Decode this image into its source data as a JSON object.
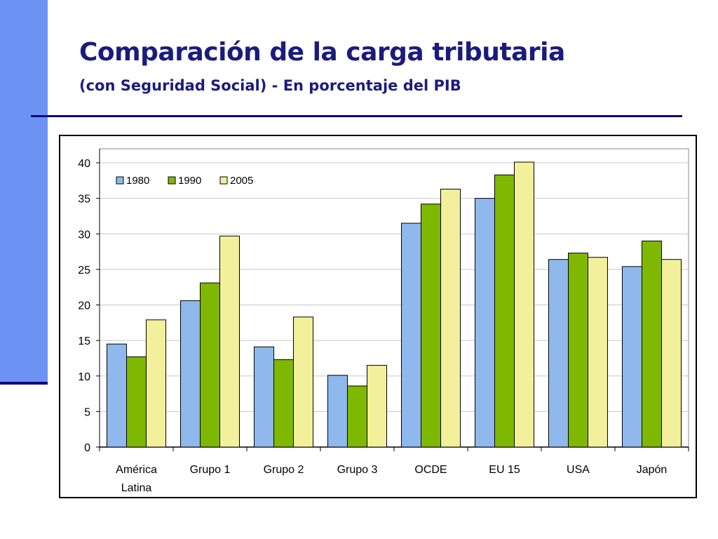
{
  "title": "Comparación de la carga tributaria",
  "subtitle": "(con Seguridad Social) - En porcentaje del PIB",
  "chart_data": {
    "type": "bar",
    "categories": [
      [
        "América",
        "Latina"
      ],
      [
        "Grupo 1"
      ],
      [
        "Grupo 2"
      ],
      [
        "Grupo 3"
      ],
      [
        "OCDE"
      ],
      [
        "EU 15"
      ],
      [
        "USA"
      ],
      [
        "Japón"
      ]
    ],
    "series": [
      {
        "name": "1980",
        "color": "#8FB9EC",
        "values": [
          14.5,
          20.6,
          14.1,
          10.1,
          31.5,
          35.0,
          26.4,
          25.4
        ]
      },
      {
        "name": "1990",
        "color": "#7FB800",
        "values": [
          12.7,
          23.1,
          12.3,
          8.6,
          34.2,
          38.3,
          27.3,
          29.0
        ]
      },
      {
        "name": "2005",
        "color": "#F2F09A",
        "values": [
          17.9,
          29.7,
          18.3,
          11.5,
          36.3,
          40.1,
          26.7,
          26.4
        ]
      }
    ],
    "ylim": [
      0,
      40
    ],
    "yticks": [
      0,
      5,
      10,
      15,
      20,
      25,
      30,
      35,
      40
    ],
    "grid": true,
    "legend_position": "top-left"
  }
}
